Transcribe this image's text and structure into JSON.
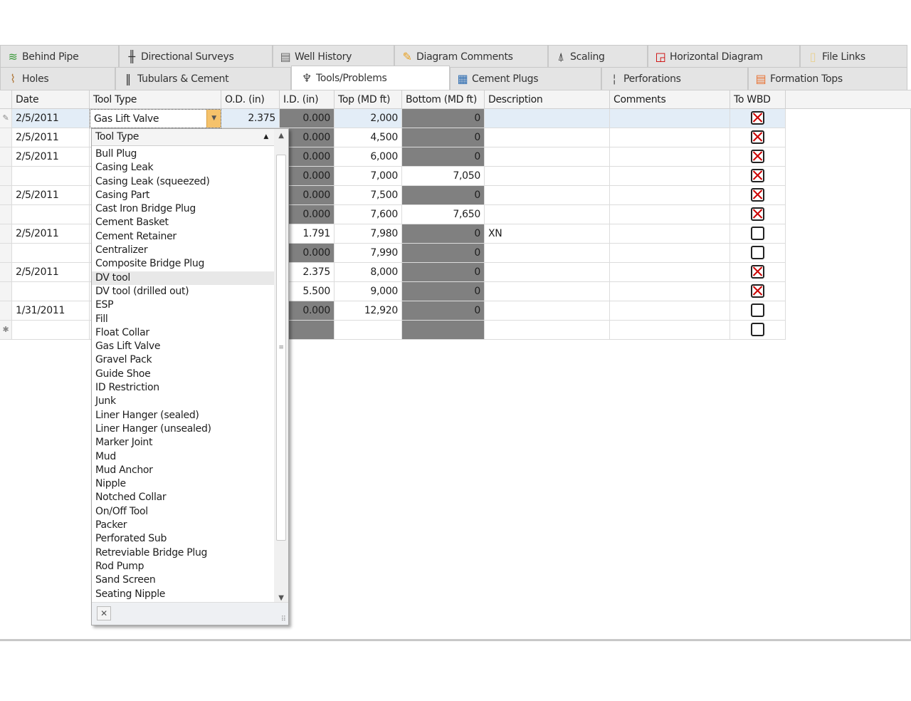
{
  "tabs_row1": [
    {
      "label": "Behind Pipe",
      "icon": "behind-pipe-icon"
    },
    {
      "label": "Directional Surveys",
      "icon": "directional-surveys-icon"
    },
    {
      "label": "Well History",
      "icon": "notebook-icon"
    },
    {
      "label": "Diagram Comments",
      "icon": "pencil-icon"
    },
    {
      "label": "Scaling",
      "icon": "compass-icon"
    },
    {
      "label": "Horizontal Diagram",
      "icon": "horizontal-diagram-icon"
    },
    {
      "label": "File Links",
      "icon": "file-links-icon"
    }
  ],
  "tabs_row2": [
    {
      "label": "Holes",
      "icon": "holes-icon"
    },
    {
      "label": "Tubulars & Cement",
      "icon": "tubulars-icon"
    },
    {
      "label": "Tools/Problems",
      "icon": "wrench-icon",
      "active": true
    },
    {
      "label": "Cement Plugs",
      "icon": "cement-plugs-icon"
    },
    {
      "label": "Perforations",
      "icon": "perforations-icon"
    },
    {
      "label": "Formation Tops",
      "icon": "formation-tops-icon"
    }
  ],
  "columns": [
    "Date",
    "Tool Type",
    "O.D. (in)",
    "I.D. (in)",
    "Top (MD ft)",
    "Bottom (MD ft)",
    "Description",
    "Comments",
    "To WBD"
  ],
  "rows": [
    {
      "date": "2/5/2011",
      "tool": "Gas Lift Valve",
      "od": "2.375",
      "id": "0.000",
      "id_gray": true,
      "top": "2,000",
      "bottom": "0",
      "bottom_gray": true,
      "desc": "",
      "wbd": true
    },
    {
      "date": "2/5/2011",
      "tool": "",
      "od": "",
      "id": "0.000",
      "id_gray": true,
      "top": "4,500",
      "bottom": "0",
      "bottom_gray": true,
      "desc": "",
      "wbd": true
    },
    {
      "date": "2/5/2011",
      "tool": "",
      "od": "",
      "id": "0.000",
      "id_gray": true,
      "top": "6,000",
      "bottom": "0",
      "bottom_gray": true,
      "desc": "",
      "wbd": true
    },
    {
      "date": "",
      "tool": "",
      "od": "",
      "id": "0.000",
      "id_gray": true,
      "top": "7,000",
      "bottom": "7,050",
      "bottom_gray": false,
      "desc": "",
      "wbd": true
    },
    {
      "date": "2/5/2011",
      "tool": "",
      "od": "",
      "id": "0.000",
      "id_gray": true,
      "top": "7,500",
      "bottom": "0",
      "bottom_gray": true,
      "desc": "",
      "wbd": true
    },
    {
      "date": "",
      "tool": "",
      "od": "",
      "id": "0.000",
      "id_gray": true,
      "top": "7,600",
      "bottom": "7,650",
      "bottom_gray": false,
      "desc": "",
      "wbd": true
    },
    {
      "date": "2/5/2011",
      "tool": "",
      "od": "",
      "id": "1.791",
      "id_gray": false,
      "top": "7,980",
      "bottom": "0",
      "bottom_gray": true,
      "desc": "XN",
      "wbd": false
    },
    {
      "date": "",
      "tool": "",
      "od": "",
      "id": "0.000",
      "id_gray": true,
      "top": "7,990",
      "bottom": "0",
      "bottom_gray": true,
      "desc": "",
      "wbd": false
    },
    {
      "date": "2/5/2011",
      "tool": "",
      "od": "",
      "id": "2.375",
      "id_gray": false,
      "top": "8,000",
      "bottom": "0",
      "bottom_gray": true,
      "desc": "",
      "wbd": true
    },
    {
      "date": "",
      "tool": "",
      "od": "",
      "id": "5.500",
      "id_gray": false,
      "top": "9,000",
      "bottom": "0",
      "bottom_gray": true,
      "desc": "",
      "wbd": true
    },
    {
      "date": "1/31/2011",
      "tool": "",
      "od": "",
      "id": "0.000",
      "id_gray": true,
      "top": "12,920",
      "bottom": "0",
      "bottom_gray": true,
      "desc": "",
      "wbd": false
    },
    {
      "date": "",
      "tool": "",
      "od": "",
      "id": "",
      "id_gray": true,
      "top": "",
      "bottom": "",
      "bottom_gray": true,
      "desc": "",
      "wbd": false,
      "new": true
    }
  ],
  "dropdown": {
    "header": "Tool Type",
    "highlighted": "DV tool",
    "options": [
      "Bull Plug",
      "Casing Leak",
      "Casing Leak (squeezed)",
      "Casing Part",
      "Cast Iron Bridge Plug",
      "Cement Basket",
      "Cement Retainer",
      "Centralizer",
      "Composite Bridge Plug",
      "DV tool",
      "DV tool (drilled out)",
      "ESP",
      "Fill",
      "Float Collar",
      "Gas Lift Valve",
      "Gravel Pack",
      "Guide Shoe",
      "ID Restriction",
      "Junk",
      "Liner Hanger (sealed)",
      "Liner Hanger (unsealed)",
      "Marker Joint",
      "Mud",
      "Mud Anchor",
      "Nipple",
      "Notched Collar",
      "On/Off Tool",
      "Packer",
      "Perforated Sub",
      "Retreviable Bridge Plug",
      "Rod Pump",
      "Sand Screen",
      "Seating Nipple"
    ]
  },
  "colors": {
    "gray_cell": "#808080",
    "selected_row": "#e3edf7",
    "checkbox_x": "#cc0000",
    "dropdown_accent": "#f5c26b"
  }
}
